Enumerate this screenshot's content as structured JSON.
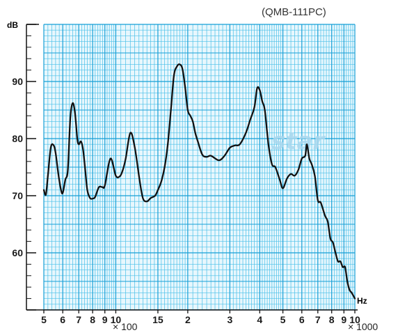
{
  "model_label": "(QMB-111PC)",
  "watermark": "star",
  "colors": {
    "grid_major": "#169fd6",
    "grid_minor": "#48bfe8",
    "grid_bg": "#e8f7fd",
    "curve": "#111111",
    "axis": "#111111",
    "watermark": "#a9d8ee"
  },
  "chart_data": {
    "type": "line",
    "title": "",
    "xlabel": "Hz",
    "ylabel": "dB",
    "x_scale": "log",
    "xlim": [
      500,
      10000
    ],
    "ylim": [
      50,
      100
    ],
    "y_ticks": [
      {
        "value": 60,
        "label": "60"
      },
      {
        "value": 70,
        "label": "70"
      },
      {
        "value": 80,
        "label": "80"
      },
      {
        "value": 90,
        "label": "90"
      }
    ],
    "x_ticks": [
      {
        "value": 500,
        "label": "5"
      },
      {
        "value": 600,
        "label": "6"
      },
      {
        "value": 700,
        "label": "7"
      },
      {
        "value": 800,
        "label": "8"
      },
      {
        "value": 900,
        "label": "9"
      },
      {
        "value": 1000,
        "label": "10"
      },
      {
        "value": 1500,
        "label": "15"
      },
      {
        "value": 2000,
        "label": "2"
      },
      {
        "value": 3000,
        "label": "3"
      },
      {
        "value": 4000,
        "label": "4"
      },
      {
        "value": 5000,
        "label": "5"
      },
      {
        "value": 6000,
        "label": "6"
      },
      {
        "value": 7000,
        "label": "7"
      },
      {
        "value": 8000,
        "label": "8"
      },
      {
        "value": 9000,
        "label": "9"
      },
      {
        "value": 10000,
        "label": "10"
      }
    ],
    "x_multipliers": {
      "low": "× 100",
      "high": "× 1000"
    },
    "grid": true,
    "series": [
      {
        "x": [
          500,
          510,
          520,
          535,
          550,
          560,
          575,
          590,
          600,
          615,
          630,
          645,
          660,
          675,
          690,
          700,
          715,
          730,
          745,
          760,
          780,
          800,
          820,
          850,
          880,
          900,
          950,
          1000,
          1040,
          1070,
          1100,
          1150,
          1200,
          1260,
          1300,
          1350,
          1400,
          1460,
          1500,
          1550,
          1600,
          1650,
          1700,
          1750,
          1800,
          1850,
          1900,
          1950,
          2000,
          2050,
          2100,
          2150,
          2200,
          2300,
          2400,
          2500,
          2700,
          2850,
          3000,
          3150,
          3300,
          3500,
          3650,
          3800,
          3900,
          4000,
          4100,
          4200,
          4350,
          4500,
          4650,
          4850,
          5000,
          5200,
          5400,
          5600,
          5800,
          6000,
          6200,
          6300,
          6450,
          6600,
          6800,
          7000,
          7200,
          7500,
          7700,
          7900,
          8100,
          8300,
          8500,
          8700,
          8900,
          9100,
          9300,
          9500,
          9700,
          10000
        ],
        "y": [
          71,
          70.2,
          73.5,
          78.5,
          78.8,
          77.5,
          73.8,
          71,
          70.5,
          72.8,
          74.5,
          83.5,
          86.2,
          84.5,
          80,
          79,
          79.5,
          78,
          74.5,
          71,
          69.6,
          69.5,
          69.8,
          71.5,
          71.5,
          71.8,
          76.5,
          73.5,
          73.4,
          74.5,
          76.5,
          81,
          78.5,
          72.5,
          69.5,
          69,
          69.6,
          70,
          71,
          72.5,
          75,
          79,
          85,
          91,
          92.6,
          93,
          92.2,
          89,
          85,
          84,
          83,
          81,
          79.6,
          77.2,
          76.8,
          77,
          76.2,
          77,
          78.4,
          78.8,
          79,
          81,
          83.3,
          85.5,
          88.8,
          88.5,
          86.5,
          85,
          79,
          75.5,
          75,
          72.8,
          71.3,
          73,
          73.8,
          73.5,
          74.5,
          76.5,
          77,
          79,
          76.5,
          75.5,
          73.5,
          69.2,
          68.8,
          66.5,
          65.5,
          62.5,
          61.8,
          60,
          58.5,
          58.5,
          57.5,
          57.5,
          55,
          53.5,
          53,
          52
        ]
      }
    ]
  }
}
